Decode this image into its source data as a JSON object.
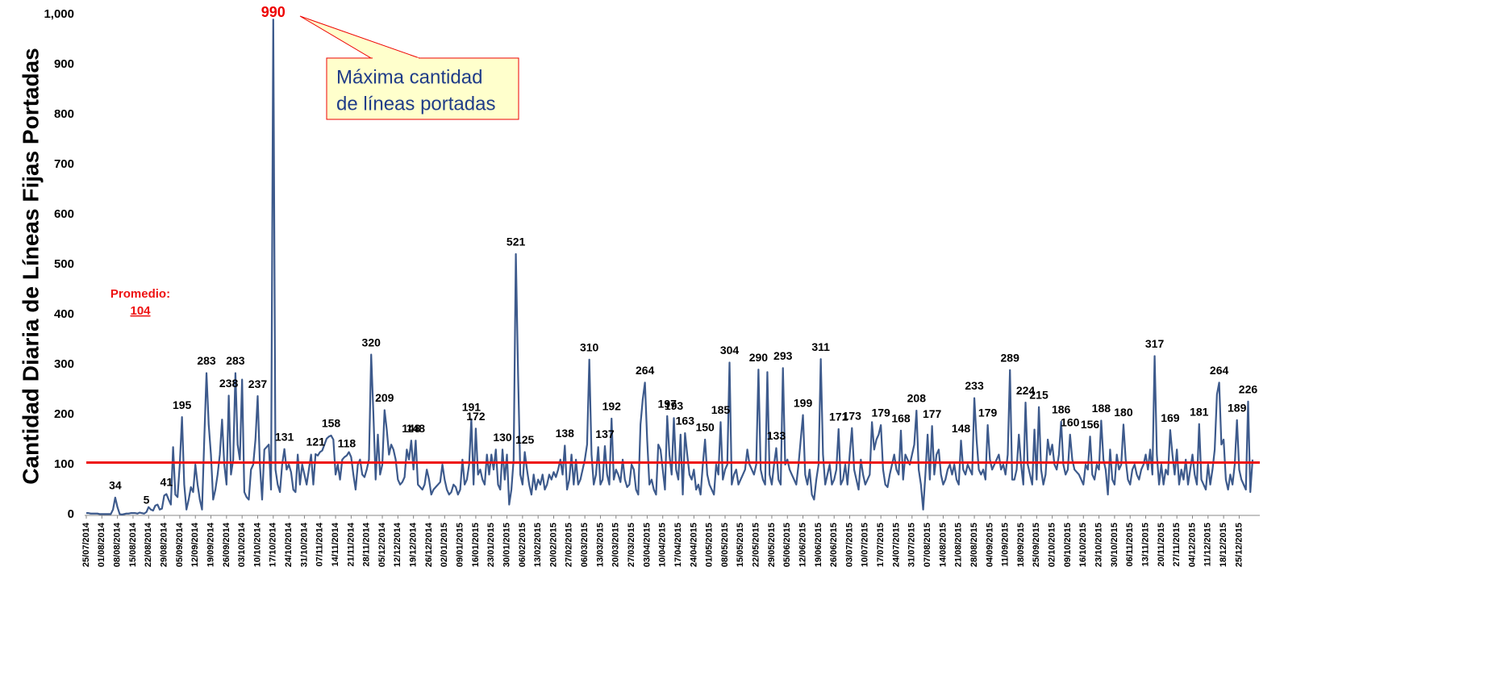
{
  "chart_data": {
    "type": "line",
    "y_label": "Cantidad Diaria de Líneas Fijas Portadas",
    "color": "#3d5a8c",
    "ylim": [
      0,
      1000
    ],
    "yticks": [
      0,
      100,
      200,
      300,
      400,
      500,
      600,
      700,
      800,
      900,
      {
        "value": 1000,
        "label": "1,000"
      }
    ],
    "average": {
      "label": "Promedio:",
      "value": 104,
      "color": "#ee1111"
    },
    "annotation": {
      "lines": [
        "Máxima cantidad",
        "de líneas portadas"
      ]
    },
    "categories": [
      "25/07/2014",
      null,
      null,
      null,
      null,
      null,
      null,
      "01/08/2014",
      null,
      null,
      null,
      null,
      null,
      null,
      "08/08/2014",
      null,
      null,
      null,
      null,
      null,
      null,
      "15/08/2014",
      null,
      null,
      null,
      null,
      null,
      null,
      "22/08/2014",
      null,
      null,
      null,
      null,
      null,
      null,
      "29/08/2014",
      null,
      null,
      null,
      null,
      null,
      null,
      "05/09/2014",
      null,
      null,
      null,
      null,
      null,
      null,
      "12/09/2014",
      null,
      null,
      null,
      null,
      null,
      null,
      "19/09/2014",
      null,
      null,
      null,
      null,
      null,
      null,
      "26/09/2014",
      null,
      null,
      null,
      null,
      null,
      null,
      "03/10/2014",
      null,
      null,
      null,
      null,
      null,
      null,
      "10/10/2014",
      null,
      null,
      null,
      null,
      null,
      null,
      "17/10/2014",
      null,
      null,
      null,
      null,
      null,
      null,
      "24/10/2014",
      null,
      null,
      null,
      null,
      null,
      null,
      "31/10/2014",
      null,
      null,
      null,
      null,
      null,
      null,
      "07/11/2014",
      null,
      null,
      null,
      null,
      null,
      null,
      "14/11/2014",
      null,
      null,
      null,
      null,
      null,
      null,
      "21/11/2014",
      null,
      null,
      null,
      null,
      null,
      null,
      "28/11/2014",
      null,
      null,
      null,
      null,
      null,
      null,
      "05/12/2014",
      null,
      null,
      null,
      null,
      null,
      null,
      "12/12/2014",
      null,
      null,
      null,
      null,
      null,
      null,
      "19/12/2014",
      null,
      null,
      null,
      null,
      null,
      null,
      "26/12/2014",
      null,
      null,
      null,
      null,
      null,
      null,
      "02/01/2015",
      null,
      null,
      null,
      null,
      null,
      null,
      "09/01/2015",
      null,
      null,
      null,
      null,
      null,
      null,
      "16/01/2015",
      null,
      null,
      null,
      null,
      null,
      null,
      "23/01/2015",
      null,
      null,
      null,
      null,
      null,
      null,
      "30/01/2015",
      null,
      null,
      null,
      null,
      null,
      null,
      "06/02/2015",
      null,
      null,
      null,
      null,
      null,
      null,
      "13/02/2015",
      null,
      null,
      null,
      null,
      null,
      null,
      "20/02/2015",
      null,
      null,
      null,
      null,
      null,
      null,
      "27/02/2015",
      null,
      null,
      null,
      null,
      null,
      null,
      "06/03/2015",
      null,
      null,
      null,
      null,
      null,
      null,
      "13/03/2015",
      null,
      null,
      null,
      null,
      null,
      null,
      "20/03/2015",
      null,
      null,
      null,
      null,
      null,
      null,
      "27/03/2015",
      null,
      null,
      null,
      null,
      null,
      null,
      "03/04/2015",
      null,
      null,
      null,
      null,
      null,
      null,
      "10/04/2015",
      null,
      null,
      null,
      null,
      null,
      null,
      "17/04/2015",
      null,
      null,
      null,
      null,
      null,
      null,
      "24/04/2015",
      null,
      null,
      null,
      null,
      null,
      null,
      "01/05/2015",
      null,
      null,
      null,
      null,
      null,
      null,
      "08/05/2015",
      null,
      null,
      null,
      null,
      null,
      null,
      "15/05/2015",
      null,
      null,
      null,
      null,
      null,
      null,
      "22/05/2015",
      null,
      null,
      null,
      null,
      null,
      null,
      "29/05/2015",
      null,
      null,
      null,
      null,
      null,
      null,
      "05/06/2015",
      null,
      null,
      null,
      null,
      null,
      null,
      "12/06/2015",
      null,
      null,
      null,
      null,
      null,
      null,
      "19/06/2015",
      null,
      null,
      null,
      null,
      null,
      null,
      "26/06/2015",
      null,
      null,
      null,
      null,
      null,
      null,
      "03/07/2015",
      null,
      null,
      null,
      null,
      null,
      null,
      "10/07/2015",
      null,
      null,
      null,
      null,
      null,
      null,
      "17/07/2015",
      null,
      null,
      null,
      null,
      null,
      null,
      "24/07/2015",
      null,
      null,
      null,
      null,
      null,
      null,
      "31/07/2015",
      null,
      null,
      null,
      null,
      null,
      null,
      "07/08/2015",
      null,
      null,
      null,
      null,
      null,
      null,
      "14/08/2015",
      null,
      null,
      null,
      null,
      null,
      null,
      "21/08/2015",
      null,
      null,
      null,
      null,
      null,
      null,
      "28/08/2015",
      null,
      null,
      null,
      null,
      null,
      null,
      "04/09/2015",
      null,
      null,
      null,
      null,
      null,
      null,
      "11/09/2015",
      null,
      null,
      null,
      null,
      null,
      null,
      "18/09/2015",
      null,
      null,
      null,
      null,
      null,
      null,
      "25/09/2015",
      null,
      null,
      null,
      null,
      null,
      null,
      "02/10/2015",
      null,
      null,
      null,
      null,
      null,
      null,
      "09/10/2015",
      null,
      null,
      null,
      null,
      null,
      null,
      "16/10/2015",
      null,
      null,
      null,
      null,
      null,
      null,
      "23/10/2015",
      null,
      null,
      null,
      null,
      null,
      null,
      "30/10/2015",
      null,
      null,
      null,
      null,
      null,
      null,
      "06/11/2015",
      null,
      null,
      null,
      null,
      null,
      null,
      "13/11/2015",
      null,
      null,
      null,
      null,
      null,
      null,
      "20/11/2015",
      null,
      null,
      null,
      null,
      null,
      null,
      "27/11/2015",
      null,
      null,
      null,
      null,
      null,
      null,
      "04/12/2015",
      null,
      null,
      null,
      null,
      null,
      null,
      "11/12/2015",
      null,
      null,
      null,
      null,
      null,
      null,
      "18/12/2015",
      null,
      null,
      null,
      null,
      null,
      null,
      "25/12/2015",
      null,
      null,
      null,
      null,
      null,
      null
    ],
    "values": [
      3,
      3,
      2,
      2,
      2,
      2,
      1,
      1,
      1,
      1,
      1,
      1,
      10,
      34,
      15,
      1,
      0,
      1,
      2,
      2,
      3,
      3,
      3,
      2,
      4,
      3,
      2,
      5,
      15,
      10,
      8,
      18,
      20,
      10,
      12,
      38,
      41,
      30,
      20,
      135,
      40,
      35,
      100,
      195,
      60,
      10,
      30,
      55,
      45,
      100,
      60,
      30,
      10,
      150,
      283,
      180,
      120,
      30,
      50,
      80,
      120,
      190,
      100,
      60,
      238,
      80,
      110,
      283,
      140,
      110,
      270,
      45,
      35,
      30,
      90,
      100,
      150,
      237,
      100,
      30,
      130,
      135,
      140,
      50,
      990,
      90,
      60,
      45,
      100,
      131,
      90,
      100,
      85,
      50,
      45,
      120,
      60,
      100,
      80,
      60,
      90,
      120,
      60,
      121,
      118,
      125,
      128,
      140,
      152,
      156,
      158,
      150,
      80,
      100,
      70,
      110,
      115,
      118,
      125,
      115,
      80,
      50,
      100,
      110,
      80,
      75,
      90,
      110,
      320,
      200,
      70,
      160,
      80,
      100,
      209,
      170,
      120,
      140,
      130,
      110,
      70,
      60,
      65,
      75,
      130,
      110,
      148,
      90,
      148,
      60,
      55,
      50,
      60,
      90,
      70,
      40,
      50,
      55,
      60,
      65,
      100,
      70,
      50,
      40,
      45,
      60,
      55,
      40,
      50,
      110,
      60,
      70,
      100,
      191,
      60,
      172,
      80,
      90,
      70,
      60,
      120,
      80,
      120,
      90,
      130,
      60,
      50,
      130,
      70,
      120,
      20,
      50,
      110,
      521,
      280,
      80,
      60,
      125,
      90,
      60,
      40,
      80,
      50,
      70,
      60,
      80,
      50,
      60,
      80,
      70,
      85,
      75,
      90,
      110,
      80,
      138,
      50,
      70,
      120,
      60,
      110,
      60,
      70,
      90,
      110,
      140,
      310,
      120,
      60,
      80,
      135,
      60,
      70,
      137,
      80,
      60,
      192,
      70,
      90,
      80,
      65,
      110,
      70,
      55,
      60,
      100,
      90,
      50,
      40,
      180,
      230,
      264,
      150,
      60,
      70,
      50,
      40,
      140,
      130,
      90,
      50,
      197,
      120,
      80,
      193,
      90,
      70,
      160,
      40,
      163,
      120,
      80,
      70,
      90,
      50,
      60,
      40,
      100,
      150,
      80,
      60,
      50,
      40,
      100,
      80,
      185,
      70,
      90,
      100,
      304,
      60,
      80,
      90,
      60,
      70,
      80,
      90,
      130,
      100,
      90,
      80,
      100,
      290,
      90,
      70,
      60,
      285,
      80,
      60,
      100,
      133,
      70,
      60,
      293,
      100,
      110,
      90,
      80,
      70,
      60,
      100,
      150,
      199,
      80,
      60,
      90,
      40,
      30,
      70,
      100,
      311,
      120,
      60,
      80,
      100,
      60,
      70,
      90,
      171,
      60,
      70,
      100,
      60,
      120,
      173,
      90,
      70,
      50,
      110,
      80,
      60,
      70,
      80,
      185,
      130,
      150,
      160,
      179,
      90,
      60,
      55,
      80,
      100,
      120,
      90,
      80,
      168,
      70,
      120,
      110,
      100,
      120,
      140,
      208,
      90,
      60,
      10,
      80,
      160,
      70,
      177,
      80,
      120,
      130,
      80,
      60,
      70,
      90,
      100,
      80,
      100,
      70,
      60,
      148,
      90,
      80,
      100,
      90,
      80,
      233,
      150,
      90,
      80,
      90,
      70,
      179,
      110,
      90,
      100,
      110,
      120,
      90,
      100,
      80,
      120,
      289,
      70,
      70,
      90,
      160,
      100,
      60,
      224,
      100,
      80,
      60,
      170,
      70,
      215,
      90,
      60,
      80,
      150,
      120,
      140,
      100,
      90,
      120,
      186,
      100,
      80,
      90,
      160,
      110,
      90,
      85,
      80,
      70,
      60,
      100,
      90,
      156,
      80,
      70,
      100,
      90,
      188,
      110,
      90,
      40,
      130,
      70,
      60,
      120,
      90,
      100,
      180,
      110,
      70,
      60,
      90,
      100,
      80,
      70,
      90,
      100,
      120,
      90,
      130,
      80,
      317,
      120,
      60,
      100,
      60,
      90,
      80,
      169,
      120,
      80,
      130,
      60,
      90,
      70,
      110,
      60,
      90,
      120,
      80,
      60,
      181,
      70,
      60,
      50,
      100,
      60,
      90,
      130,
      240,
      264,
      140,
      150,
      70,
      50,
      80,
      60,
      100,
      189,
      90,
      70,
      60,
      50,
      226,
      45,
      110
    ],
    "value_labels": [
      null,
      null,
      null,
      null,
      null,
      null,
      null,
      null,
      null,
      null,
      null,
      null,
      null,
      "34",
      null,
      null,
      null,
      null,
      null,
      null,
      null,
      null,
      null,
      null,
      null,
      null,
      null,
      "5",
      null,
      null,
      null,
      null,
      null,
      null,
      null,
      null,
      "41",
      null,
      null,
      null,
      null,
      null,
      null,
      "195",
      null,
      null,
      null,
      null,
      null,
      null,
      null,
      null,
      null,
      null,
      "283",
      null,
      null,
      null,
      null,
      null,
      null,
      null,
      null,
      null,
      "238",
      null,
      null,
      "283",
      null,
      null,
      null,
      null,
      null,
      null,
      null,
      null,
      null,
      "237",
      null,
      null,
      null,
      null,
      null,
      null,
      "990",
      null,
      null,
      null,
      null,
      "131",
      null,
      null,
      null,
      null,
      null,
      null,
      null,
      null,
      null,
      null,
      null,
      null,
      null,
      "121",
      null,
      null,
      null,
      null,
      null,
      null,
      "158",
      null,
      null,
      null,
      null,
      null,
      null,
      "118",
      null,
      null,
      null,
      null,
      null,
      null,
      null,
      null,
      null,
      null,
      "320",
      null,
      null,
      null,
      null,
      null,
      "209",
      null,
      null,
      null,
      null,
      null,
      null,
      null,
      null,
      null,
      null,
      null,
      "148",
      null,
      "148",
      null,
      null,
      null,
      null,
      null,
      null,
      null,
      null,
      null,
      null,
      null,
      null,
      null,
      null,
      null,
      null,
      null,
      null,
      null,
      null,
      null,
      null,
      null,
      null,
      "191",
      null,
      "172",
      null,
      null,
      null,
      null,
      null,
      null,
      null,
      null,
      null,
      null,
      null,
      "130",
      null,
      null,
      null,
      null,
      null,
      "521",
      null,
      null,
      null,
      "125",
      null,
      null,
      null,
      null,
      null,
      null,
      null,
      null,
      null,
      null,
      null,
      null,
      null,
      null,
      null,
      null,
      null,
      "138",
      null,
      null,
      null,
      null,
      null,
      null,
      null,
      null,
      null,
      null,
      "310",
      null,
      null,
      null,
      null,
      null,
      null,
      "137",
      null,
      null,
      "192",
      null,
      null,
      null,
      null,
      null,
      null,
      null,
      null,
      null,
      null,
      null,
      null,
      null,
      null,
      "264",
      null,
      null,
      null,
      null,
      null,
      null,
      null,
      null,
      null,
      "197",
      null,
      null,
      "193",
      null,
      null,
      null,
      null,
      "163",
      null,
      null,
      null,
      null,
      null,
      null,
      null,
      null,
      "150",
      null,
      null,
      null,
      null,
      null,
      null,
      "185",
      null,
      null,
      null,
      "304",
      null,
      null,
      null,
      null,
      null,
      null,
      null,
      null,
      null,
      null,
      null,
      null,
      "290",
      null,
      null,
      null,
      null,
      null,
      null,
      null,
      "133",
      null,
      null,
      "293",
      null,
      null,
      null,
      null,
      null,
      null,
      null,
      null,
      "199",
      null,
      null,
      null,
      null,
      null,
      null,
      null,
      "311",
      null,
      null,
      null,
      null,
      null,
      null,
      null,
      "171",
      null,
      null,
      null,
      null,
      null,
      "173",
      null,
      null,
      null,
      null,
      null,
      null,
      null,
      null,
      null,
      null,
      null,
      null,
      "179",
      null,
      null,
      null,
      null,
      null,
      null,
      null,
      null,
      "168",
      null,
      null,
      null,
      null,
      null,
      null,
      "208",
      null,
      null,
      null,
      null,
      null,
      null,
      "177",
      null,
      null,
      null,
      null,
      null,
      null,
      null,
      null,
      null,
      null,
      null,
      null,
      "148",
      null,
      null,
      null,
      null,
      null,
      "233",
      null,
      null,
      null,
      null,
      null,
      "179",
      null,
      null,
      null,
      null,
      null,
      null,
      null,
      null,
      null,
      "289",
      null,
      null,
      null,
      null,
      null,
      null,
      "224",
      null,
      null,
      null,
      null,
      null,
      "215",
      null,
      null,
      null,
      null,
      null,
      null,
      null,
      null,
      null,
      "186",
      null,
      null,
      null,
      "160",
      null,
      null,
      null,
      null,
      null,
      null,
      null,
      null,
      "156",
      null,
      null,
      null,
      null,
      "188",
      null,
      null,
      null,
      null,
      null,
      null,
      null,
      null,
      null,
      "180",
      null,
      null,
      null,
      null,
      null,
      null,
      null,
      null,
      null,
      null,
      null,
      null,
      null,
      "317",
      null,
      null,
      null,
      null,
      null,
      null,
      "169",
      null,
      null,
      null,
      null,
      null,
      null,
      null,
      null,
      null,
      null,
      null,
      null,
      "181",
      null,
      null,
      null,
      null,
      null,
      null,
      null,
      null,
      "264",
      null,
      null,
      null,
      null,
      null,
      null,
      null,
      "189",
      null,
      null,
      null,
      null,
      "226",
      null,
      null
    ]
  }
}
